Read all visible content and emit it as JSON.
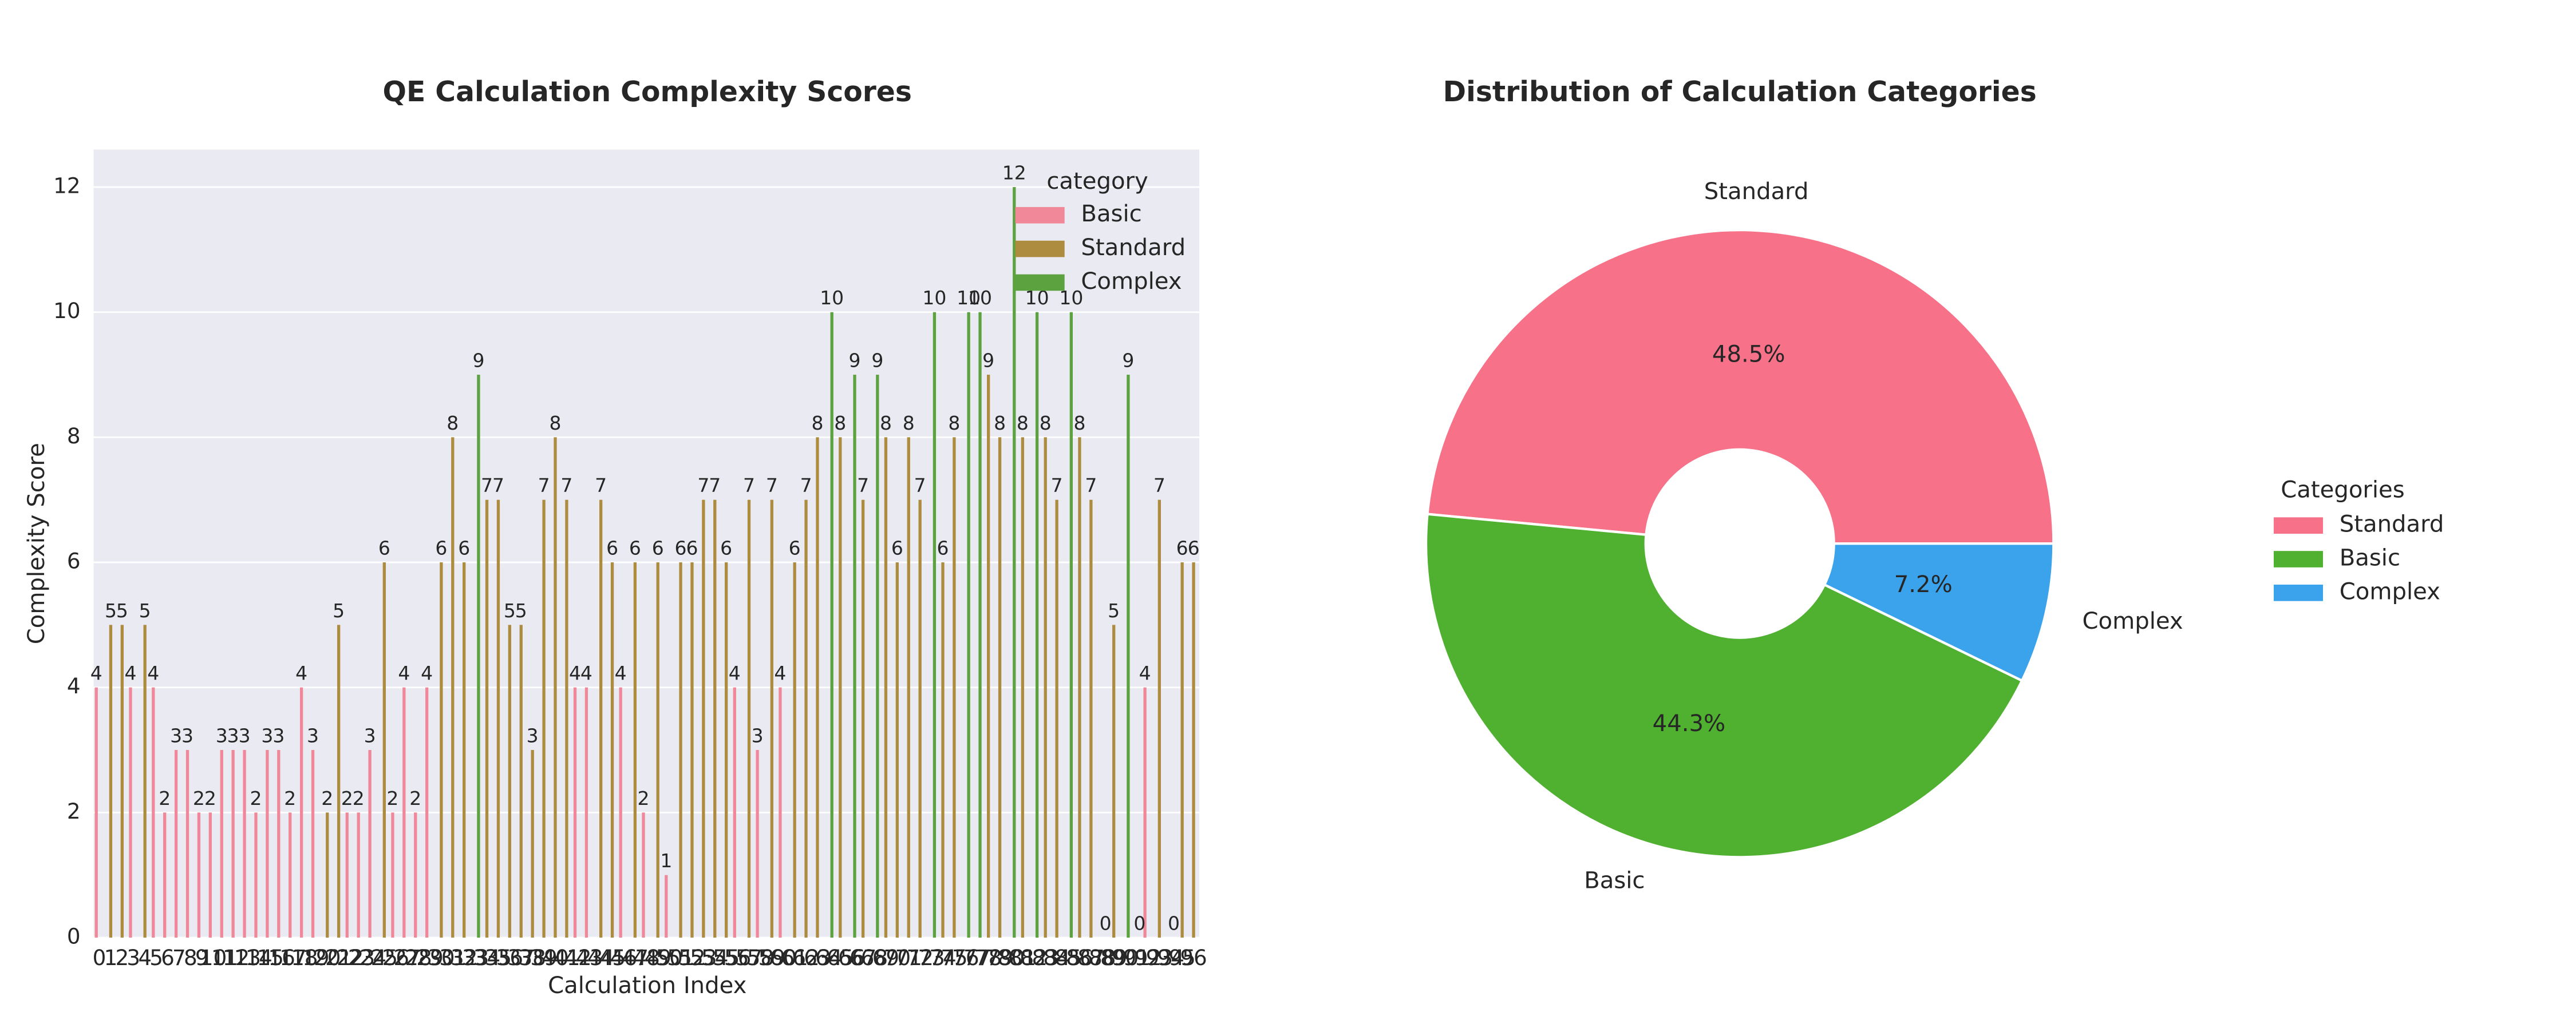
{
  "chart_data": [
    {
      "type": "bar",
      "title": "QE Calculation Complexity Scores",
      "x_label": "Calculation Index",
      "y_label": "Complexity Score",
      "legend_title": "category",
      "legend": "upper right",
      "grid": true,
      "categories": [
        0,
        1,
        2,
        3,
        4,
        5,
        6,
        7,
        8,
        9,
        10,
        11,
        12,
        13,
        14,
        15,
        16,
        17,
        18,
        19,
        20,
        21,
        22,
        23,
        24,
        25,
        26,
        27,
        28,
        29,
        30,
        31,
        32,
        33,
        34,
        35,
        36,
        37,
        38,
        39,
        40,
        41,
        42,
        43,
        44,
        45,
        46,
        47,
        48,
        49,
        50,
        51,
        52,
        53,
        54,
        55,
        56,
        57,
        58,
        59,
        60,
        61,
        62,
        63,
        64,
        65,
        66,
        67,
        68,
        69,
        70,
        71,
        72,
        73,
        74,
        75,
        76,
        77,
        78,
        79,
        80,
        81,
        82,
        83,
        84,
        85,
        86,
        87,
        88,
        89,
        90,
        91,
        92,
        93,
        94,
        95,
        96
      ],
      "ylim": [
        0,
        12.6
      ],
      "yticks": [
        0,
        2,
        4,
        6,
        8,
        10,
        12
      ],
      "series": [
        {
          "name": "Basic",
          "color": "#f0889a",
          "values": [
            4,
            null,
            null,
            4,
            null,
            4,
            2,
            3,
            3,
            2,
            2,
            3,
            3,
            3,
            2,
            3,
            3,
            2,
            4,
            3,
            null,
            null,
            2,
            2,
            3,
            null,
            2,
            4,
            2,
            4,
            null,
            null,
            null,
            null,
            null,
            null,
            null,
            null,
            null,
            null,
            null,
            null,
            4,
            4,
            null,
            null,
            4,
            null,
            2,
            null,
            1,
            null,
            null,
            null,
            null,
            null,
            4,
            null,
            3,
            null,
            4,
            null,
            null,
            null,
            null,
            null,
            null,
            null,
            null,
            null,
            null,
            null,
            null,
            null,
            null,
            null,
            null,
            null,
            null,
            null,
            null,
            null,
            null,
            null,
            null,
            null,
            null,
            null,
            null,
            null,
            null,
            null,
            4,
            null,
            null,
            null,
            null
          ]
        },
        {
          "name": "Standard",
          "color": "#ad8c3f",
          "values": [
            null,
            5,
            5,
            null,
            5,
            null,
            null,
            null,
            null,
            null,
            null,
            null,
            null,
            null,
            null,
            null,
            null,
            null,
            null,
            null,
            2,
            5,
            null,
            null,
            null,
            6,
            null,
            null,
            null,
            null,
            6,
            8,
            6,
            null,
            7,
            7,
            5,
            5,
            3,
            7,
            8,
            7,
            null,
            null,
            7,
            6,
            null,
            6,
            null,
            6,
            null,
            6,
            6,
            7,
            7,
            6,
            null,
            7,
            null,
            7,
            null,
            6,
            7,
            8,
            null,
            8,
            null,
            7,
            null,
            8,
            6,
            8,
            7,
            null,
            6,
            8,
            null,
            null,
            9,
            8,
            null,
            8,
            null,
            8,
            7,
            null,
            8,
            7,
            null,
            5,
            null,
            null,
            null,
            7,
            null,
            6,
            6
          ]
        },
        {
          "name": "Complex",
          "color": "#5ca33f",
          "values": [
            null,
            null,
            null,
            null,
            null,
            null,
            null,
            null,
            null,
            null,
            null,
            null,
            null,
            null,
            null,
            null,
            null,
            null,
            null,
            null,
            null,
            null,
            null,
            null,
            null,
            null,
            null,
            null,
            null,
            null,
            null,
            null,
            null,
            9,
            null,
            null,
            null,
            null,
            null,
            null,
            null,
            null,
            null,
            null,
            null,
            null,
            null,
            null,
            null,
            null,
            null,
            null,
            null,
            null,
            null,
            null,
            null,
            null,
            null,
            null,
            null,
            null,
            null,
            null,
            10,
            null,
            9,
            null,
            9,
            null,
            null,
            null,
            null,
            10,
            null,
            null,
            10,
            10,
            null,
            null,
            12,
            null,
            10,
            null,
            null,
            10,
            null,
            null,
            0,
            null,
            9,
            0,
            null,
            null,
            0,
            null,
            null
          ]
        }
      ]
    },
    {
      "type": "pie",
      "title": "Distribution of Calculation Categories",
      "legend_title": "Categories",
      "legend": "center right",
      "labels": [
        "Standard",
        "Basic",
        "Complex"
      ],
      "values": [
        48.5,
        44.3,
        7.2
      ],
      "value_labels": [
        "48.5%",
        "44.3%",
        "7.2%"
      ],
      "colors": [
        "#f77189",
        "#50b131",
        "#3ba3ec"
      ],
      "hole": 0.3
    }
  ]
}
